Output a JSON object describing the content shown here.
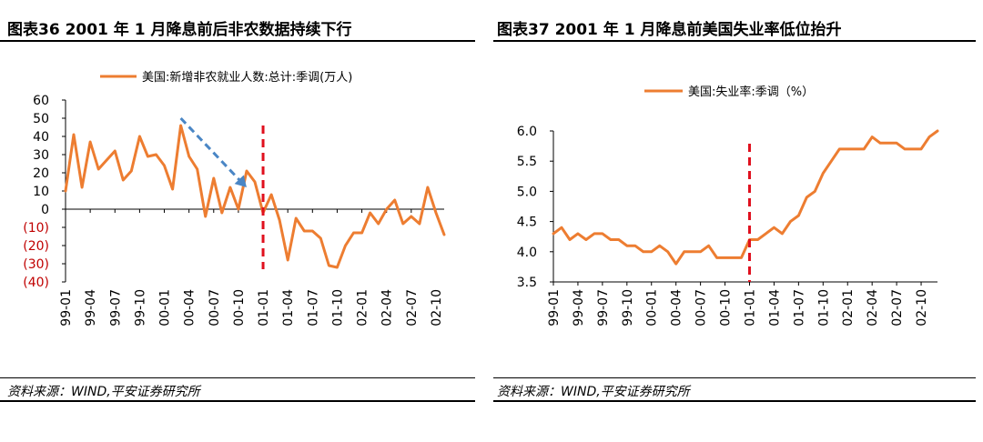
{
  "source_note": "资料来源：WIND,平安证券研究所",
  "colors": {
    "series": "#ED7D31",
    "arrow": "#4A86C5",
    "marker": "#E0101E",
    "negative_tick": "#C00000"
  },
  "chart_data": [
    {
      "type": "line",
      "title": "图表36    2001 年 1 月降息前后非农数据持续下行",
      "legend": "美国:新增非农就业人数:总计:季调(万人)",
      "legend_position": "top",
      "x_tick_labels": [
        "99-01",
        "99-04",
        "99-07",
        "99-10",
        "00-01",
        "00-04",
        "00-07",
        "00-10",
        "01-01",
        "01-04",
        "01-07",
        "01-10",
        "02-01",
        "02-04",
        "02-07",
        "02-10"
      ],
      "y_tick_labels": [
        "60",
        "50",
        "40",
        "30",
        "20",
        "10",
        "0",
        "(10)",
        "(20)",
        "(30)",
        "(40)"
      ],
      "ylim": [
        -40,
        60
      ],
      "series": [
        {
          "name": "美国:新增非农就业人数:总计:季调(万人)",
          "values": [
            10,
            41,
            12,
            37,
            22,
            27,
            32,
            16,
            21,
            40,
            29,
            30,
            24,
            11,
            46,
            29,
            22,
            -4,
            17,
            -2,
            12,
            0,
            21,
            15,
            -2,
            8,
            -6,
            -28,
            -5,
            -12,
            -12,
            -16,
            -31,
            -32,
            -20,
            -13,
            -13,
            -2,
            -8,
            0,
            5,
            -8,
            -4,
            -8,
            12,
            -2,
            -14
          ]
        }
      ],
      "annotations": [
        {
          "type": "dashed-arrow",
          "from": {
            "x_index": 14,
            "y": 50
          },
          "to": {
            "x_index": 22,
            "y": 12
          }
        },
        {
          "type": "vertical-dashed-line",
          "x_label": "01-01",
          "x_index": 24
        }
      ]
    },
    {
      "type": "line",
      "title": "图表37    2001 年 1 月降息前美国失业率低位抬升",
      "legend": "美国:失业率:季调（%）",
      "legend_position": "top",
      "x_tick_labels": [
        "99-01",
        "99-04",
        "99-07",
        "99-10",
        "00-01",
        "00-04",
        "00-07",
        "00-10",
        "01-01",
        "01-04",
        "01-07",
        "01-10",
        "02-01",
        "02-04",
        "02-07",
        "02-10"
      ],
      "y_tick_labels": [
        "6.0",
        "5.5",
        "5.0",
        "4.5",
        "4.0",
        "3.5"
      ],
      "ylim": [
        3.5,
        6.0
      ],
      "series": [
        {
          "name": "美国:失业率:季调（%）",
          "values": [
            4.3,
            4.4,
            4.2,
            4.3,
            4.2,
            4.3,
            4.3,
            4.2,
            4.2,
            4.1,
            4.1,
            4.0,
            4.0,
            4.1,
            4.0,
            3.8,
            4.0,
            4.0,
            4.0,
            4.1,
            3.9,
            3.9,
            3.9,
            3.9,
            4.2,
            4.2,
            4.3,
            4.4,
            4.3,
            4.5,
            4.6,
            4.9,
            5.0,
            5.3,
            5.5,
            5.7,
            5.7,
            5.7,
            5.7,
            5.9,
            5.8,
            5.8,
            5.8,
            5.7,
            5.7,
            5.7,
            5.9,
            6.0
          ]
        }
      ],
      "annotations": [
        {
          "type": "vertical-dashed-line",
          "x_label": "01-01",
          "x_index": 24
        }
      ]
    }
  ]
}
